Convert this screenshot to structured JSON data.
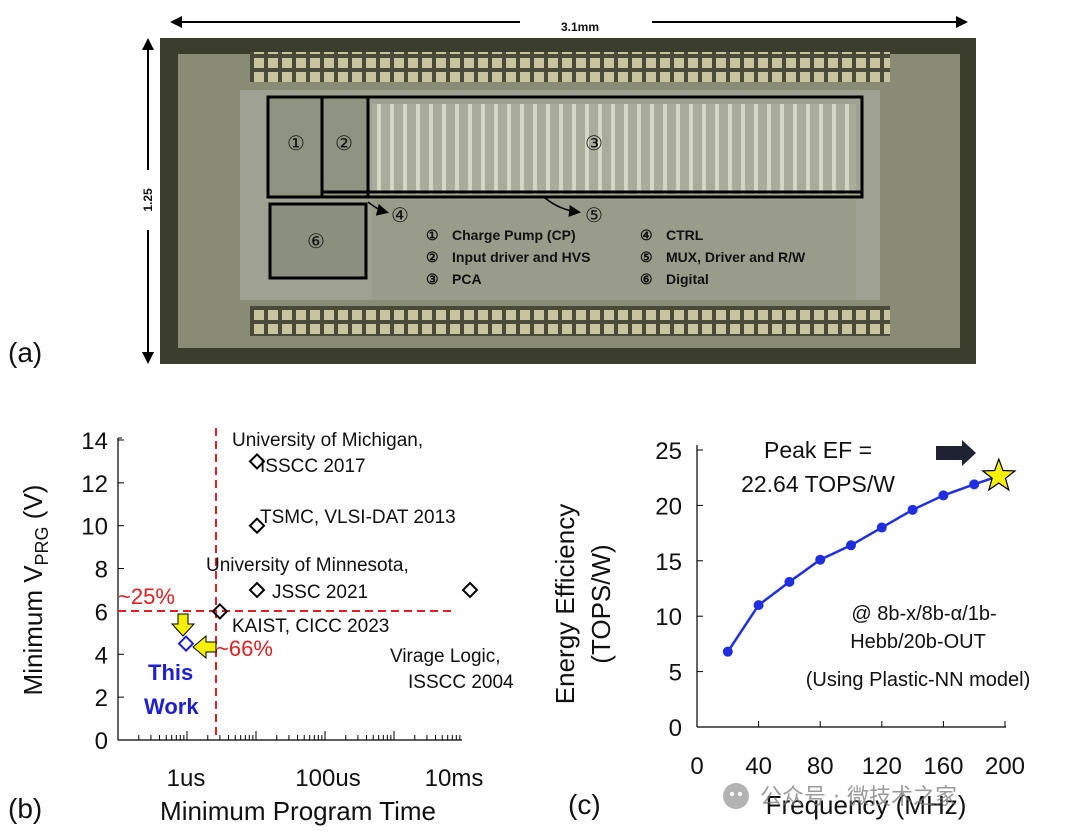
{
  "die": {
    "width_label": "3.1mm",
    "height_label": "1.25",
    "panel_label": "(a)",
    "blocks": [
      {
        "id": "①",
        "name": "Charge Pump (CP)"
      },
      {
        "id": "②",
        "name": "Input driver and HVS"
      },
      {
        "id": "③",
        "name": "PCA"
      },
      {
        "id": "④",
        "name": "CTRL"
      },
      {
        "id": "⑤",
        "name": "MUX, Driver and R/W"
      },
      {
        "id": "⑥",
        "name": "Digital"
      }
    ]
  },
  "chart_data": [
    {
      "type": "scatter",
      "panel_label": "(b)",
      "title": "",
      "xlabel": "Minimum Program Time",
      "ylabel": "Minimum V",
      "ylabel_sub": "PRG",
      "ylabel_unit": " (V)",
      "x_scale": "log",
      "xticks": [
        "1us",
        "100us",
        "10ms"
      ],
      "yticks": [
        0,
        2,
        4,
        6,
        8,
        10,
        12,
        14
      ],
      "ylim": [
        0,
        14
      ],
      "points": [
        {
          "label": "University of Michigan,\nISSCC 2017",
          "x": "10us",
          "y": 13
        },
        {
          "label": "TSMC, VLSI-DAT 2013",
          "x": "10us",
          "y": 10
        },
        {
          "label": "University of Minnesota,\nJSSC 2021",
          "x": "10us",
          "y": 7
        },
        {
          "label": "KAIST, CICC 2023",
          "x": "3us",
          "y": 6
        },
        {
          "label": "Virage Logic,\nISSCC 2004",
          "x": "10ms",
          "y": 7
        },
        {
          "label": "This\nWork",
          "x": "1us",
          "y": 4.5
        }
      ],
      "annotations": [
        "~25%",
        "~66%"
      ],
      "colors": {
        "this_work": "#1f1fd1",
        "annotation": "#e02020",
        "arrow": "#f5f000"
      }
    },
    {
      "type": "line",
      "panel_label": "(c)",
      "title": "",
      "xlabel": "Frequency (MHz)",
      "ylabel": "Energy Efficiency\n(TOPS/W)",
      "xticks": [
        0,
        40,
        80,
        120,
        160,
        200
      ],
      "yticks": [
        0,
        5,
        10,
        15,
        20,
        25
      ],
      "xlim": [
        0,
        200
      ],
      "ylim": [
        0,
        25
      ],
      "series": [
        {
          "x": [
            20,
            40,
            60,
            80,
            100,
            120,
            140,
            160,
            180
          ],
          "values": [
            6.8,
            11,
            13.1,
            15.1,
            16.4,
            18,
            19.6,
            20.9,
            21.9
          ]
        }
      ],
      "peak": {
        "x": 196,
        "y": 22.64
      },
      "peak_label": "Peak EF =\n22.64 TOPS/W",
      "condition_label": "@ 8b-x/8b-α/1b-\nHebb/20b-OUT\n(Using Plastic-NN model)",
      "colors": {
        "line": "#1f2fe0",
        "star": "#f5f000"
      }
    }
  ],
  "watermark": "公众号 · 微技术之家"
}
